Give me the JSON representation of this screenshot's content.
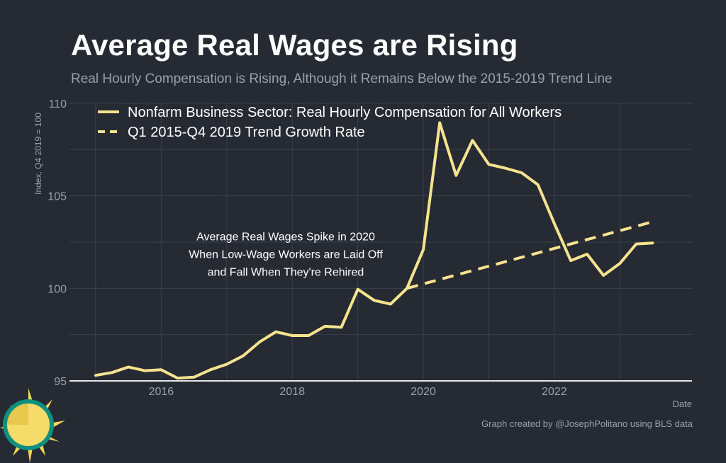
{
  "title": "Average Real Wages are Rising",
  "subtitle": "Real Hourly Compensation is Rising, Although it Remains Below the 2015-2019 Trend Line",
  "credit": "Graph created by @JosephPolitano using BLS data",
  "colors": {
    "background": "#252a33",
    "line": "#f6e38f",
    "grid": "#3a404b",
    "text": "#9aa0a8"
  },
  "chart_data": {
    "type": "line",
    "xlabel": "Date",
    "ylabel": "Index, Q4 2019 = 100",
    "xlim": [
      2014.6,
      2024.1
    ],
    "ylim": [
      95,
      110
    ],
    "yticks": [
      95,
      100,
      105,
      110
    ],
    "xticks": [
      2016,
      2018,
      2020,
      2022
    ],
    "legend": "top-left",
    "annotation": [
      "Average Real Wages Spike in 2020",
      "When Low-Wage Workers are Laid Off",
      "and Fall When They're Rehired"
    ],
    "annotation_at": {
      "x": 2017.9,
      "y": 102.6
    },
    "series": [
      {
        "name": "Nonfarm Business Sector: Real Hourly Compensation for All Workers",
        "style": "solid",
        "x": [
          2015.0,
          2015.25,
          2015.5,
          2015.75,
          2016.0,
          2016.25,
          2016.5,
          2016.75,
          2017.0,
          2017.25,
          2017.5,
          2017.75,
          2018.0,
          2018.25,
          2018.5,
          2018.75,
          2019.0,
          2019.25,
          2019.5,
          2019.75,
          2020.0,
          2020.25,
          2020.5,
          2020.75,
          2021.0,
          2021.25,
          2021.5,
          2021.75,
          2022.0,
          2022.25,
          2022.5,
          2022.75,
          2023.0,
          2023.25,
          2023.5
        ],
        "values": [
          95.3,
          95.45,
          95.75,
          95.55,
          95.6,
          95.15,
          95.2,
          95.6,
          95.9,
          96.35,
          97.1,
          97.65,
          97.45,
          97.45,
          97.95,
          97.9,
          99.95,
          99.35,
          99.15,
          100.0,
          102.1,
          108.95,
          106.1,
          108.0,
          106.7,
          106.5,
          106.25,
          105.6,
          103.5,
          101.5,
          101.85,
          100.7,
          101.35,
          102.4,
          102.45
        ]
      },
      {
        "name": "Q1 2015-Q4 2019 Trend Growth Rate",
        "style": "dashed",
        "x": [
          2019.75,
          2023.5
        ],
        "values": [
          100.0,
          103.6
        ]
      }
    ]
  }
}
